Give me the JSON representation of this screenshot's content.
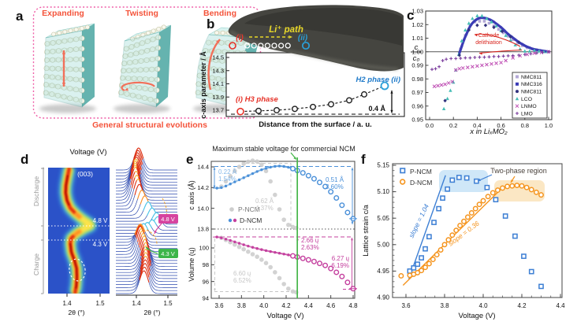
{
  "panel_a": {
    "label": "a",
    "titles": [
      "Expanding",
      "Twisting",
      "Bending"
    ],
    "caption": "General structural evolutions",
    "accent_color": "#f4533a",
    "border_color": "#ef5fa7"
  },
  "panel_b": {
    "label": "b",
    "tem": {
      "path_label": "Li⁺ path",
      "start_label": "(i)",
      "end_label": "(ii)",
      "start_color": "#e63329",
      "end_color": "#2a9fd8",
      "path_color": "#e8d829"
    },
    "plot": {
      "ylabel": "c-axis  parameter / Å",
      "xlabel": "Distance from the surface / a. u.",
      "yticks": [
        "14.5",
        "14.3",
        "14.1",
        "13.9",
        "13.7"
      ],
      "h2_label": "H2 phase (ii)",
      "h3_label": "(i) H3 phase",
      "delta_label": "0.4 Å",
      "values": [
        13.68,
        13.69,
        13.7,
        13.72,
        13.75,
        13.79,
        13.85,
        13.94,
        14.07
      ],
      "baseline": 13.64
    }
  },
  "panel_c": {
    "label": "c",
    "ylabel_num": "c",
    "ylabel_den": "c₀",
    "xlabel": "x in LiₓMO₂",
    "annotation1": "Cathode",
    "annotation2": "delithiation",
    "yticks": [
      "1.03",
      "1.02",
      "1.01",
      "1.00",
      "0.99",
      "0.98",
      "0.97",
      "0.96",
      "0.95"
    ],
    "xticks": [
      "0.0",
      "0.2",
      "0.4",
      "0.6",
      "0.8",
      "1.0"
    ],
    "legend": [
      {
        "label": "NMC811",
        "color": "#b3a8d6",
        "marker": "square"
      },
      {
        "label": "NMC316",
        "color": "#3b3bb5",
        "marker": "square"
      },
      {
        "label": "NMC811",
        "color": "#32327e",
        "marker": "circle"
      },
      {
        "label": "LCO",
        "color": "#45bdb5",
        "marker": "triangle"
      },
      {
        "label": "LNMO",
        "color": "#bf4fb4",
        "marker": "x"
      },
      {
        "label": "LMO",
        "color": "#7c3f9e",
        "marker": "plus"
      }
    ],
    "series": {
      "nmc316": {
        "x": [
          0.25,
          0.27,
          0.29,
          0.31,
          0.33,
          0.35,
          0.37,
          0.39,
          0.41,
          0.43,
          0.45,
          0.48,
          0.51,
          0.54,
          0.57,
          0.6,
          0.63,
          0.66,
          0.69,
          0.72,
          0.75,
          0.78,
          0.81,
          0.84,
          0.87,
          0.9,
          0.93,
          0.96,
          1.0
        ],
        "y": [
          0.999,
          1.004,
          1.009,
          1.013,
          1.017,
          1.02,
          1.022,
          1.0235,
          1.0245,
          1.025,
          1.025,
          1.0245,
          1.0235,
          1.022,
          1.02,
          1.018,
          1.0155,
          1.013,
          1.011,
          1.009,
          1.007,
          1.0055,
          1.004,
          1.003,
          1.002,
          1.0015,
          1.001,
          1.0005,
          1.0
        ]
      },
      "lco": {
        "x": [
          0.12,
          0.15,
          0.175,
          0.2,
          0.22,
          0.245,
          0.27,
          0.3,
          0.33,
          0.36,
          0.4,
          0.44,
          0.48,
          0.52,
          0.56,
          0.6,
          0.64,
          0.68,
          0.72,
          0.76,
          0.8,
          0.84,
          0.88,
          0.92,
          0.96,
          0.99
        ],
        "y": [
          0.958,
          0.9655,
          0.9715,
          0.9775,
          0.9865,
          0.998,
          1.008,
          1.016,
          1.021,
          1.0245,
          1.0265,
          1.0265,
          1.0245,
          1.022,
          1.019,
          1.0155,
          1.012,
          1.0085,
          1.005,
          1.002,
          1.0005,
          1.0005,
          1.001,
          1.0005,
          1.0,
          1.0
        ]
      },
      "nmc811_sq": {
        "x": [
          0.26,
          0.3,
          0.34,
          0.38,
          0.42,
          0.46,
          0.5,
          0.54,
          0.58,
          0.62,
          0.66,
          0.7,
          0.74,
          0.78,
          0.82,
          0.86,
          0.9,
          0.94,
          0.98
        ],
        "y": [
          1.002,
          1.012,
          1.019,
          1.022,
          1.0225,
          1.0225,
          1.021,
          1.019,
          1.0165,
          1.014,
          1.0115,
          1.009,
          1.0065,
          1.0045,
          1.003,
          1.002,
          1.001,
          1.0005,
          1.0
        ]
      },
      "nmc811_d": {
        "x": [
          0.13,
          0.25,
          0.33,
          0.4,
          0.47,
          0.54,
          0.61,
          0.68,
          0.75
        ],
        "y": [
          0.964,
          0.9975,
          1.016,
          1.0195,
          1.0195,
          1.018,
          1.015,
          1.011,
          1.007
        ]
      },
      "lnmo": {
        "x": [
          0.04,
          0.07,
          0.1,
          0.13,
          0.16,
          0.19,
          0.22,
          0.25,
          0.28,
          0.32,
          0.36,
          0.4,
          0.44,
          0.48,
          0.52,
          0.56,
          0.6,
          0.64,
          0.7,
          0.76,
          0.82,
          0.88,
          0.94,
          1.0
        ],
        "y": [
          0.9745,
          0.975,
          0.9755,
          0.976,
          0.977,
          0.978,
          0.9865,
          0.9875,
          0.988,
          0.9885,
          0.989,
          0.9895,
          0.99,
          0.9905,
          0.991,
          0.9915,
          0.992,
          0.9935,
          0.9955,
          0.997,
          0.998,
          0.999,
          0.9995,
          1.0
        ]
      },
      "lmo": {
        "x": [
          0.02,
          0.05,
          0.08,
          0.11,
          0.14,
          0.18,
          0.22,
          0.26,
          0.3,
          0.34,
          0.38,
          0.42,
          0.46,
          0.5,
          0.54,
          0.58,
          0.62,
          0.66,
          0.7,
          0.75,
          0.8,
          0.85,
          0.9,
          0.95,
          1.0
        ],
        "y": [
          0.987,
          0.9875,
          0.989,
          0.9935,
          0.9945,
          0.995,
          0.995,
          0.9952,
          0.9955,
          0.9955,
          0.9958,
          0.996,
          0.996,
          0.9962,
          0.9965,
          0.9965,
          0.9968,
          0.997,
          0.9972,
          0.9975,
          0.998,
          0.9985,
          0.999,
          0.9995,
          1.0
        ]
      }
    }
  },
  "panel_d": {
    "label": "d",
    "title": "Voltage (V)",
    "peak": "(003)",
    "v48": "4.8 V",
    "v43": "4.3 V",
    "discharge": "Discharge",
    "charge": "Charge",
    "xticks": [
      "1.4",
      "1.5"
    ],
    "xlabel": "2θ (°)",
    "band": [
      [
        0,
        1.424
      ],
      [
        0.06,
        1.428
      ],
      [
        0.13,
        1.43
      ],
      [
        0.2,
        1.429
      ],
      [
        0.26,
        1.423
      ],
      [
        0.33,
        1.413
      ],
      [
        0.4,
        1.41
      ],
      [
        0.44,
        1.413
      ],
      [
        0.48,
        1.43
      ],
      [
        0.515,
        1.452
      ],
      [
        0.545,
        1.474
      ],
      [
        0.57,
        1.458
      ],
      [
        0.6,
        1.442
      ],
      [
        0.64,
        1.424
      ],
      [
        0.68,
        1.41
      ],
      [
        0.74,
        1.4
      ],
      [
        0.8,
        1.396
      ],
      [
        0.86,
        1.397
      ],
      [
        0.92,
        1.401
      ],
      [
        1.0,
        1.407
      ]
    ],
    "heights": [
      [
        0,
        29
      ],
      [
        0.12,
        33
      ],
      [
        0.25,
        35
      ],
      [
        0.34,
        32
      ],
      [
        0.42,
        22
      ],
      [
        0.48,
        14
      ],
      [
        0.53,
        13
      ],
      [
        0.58,
        16
      ],
      [
        0.63,
        24
      ],
      [
        0.7,
        34
      ],
      [
        0.78,
        38
      ],
      [
        0.86,
        34
      ],
      [
        0.94,
        30
      ],
      [
        1,
        28
      ]
    ],
    "vline_48_f": 0.5375,
    "vline_43_f": 0.425
  },
  "panel_e": {
    "label": "e",
    "title": "Maximum stable voltage for commercial NCM",
    "ylabel_top": "c axis (Å)",
    "ylabel_bottom": "Volume (ų)",
    "xlabel": "Voltage (V)",
    "yticks_top": [
      "14.4",
      "14.2",
      "14.0",
      "13.8"
    ],
    "yticks_bottom": [
      "100",
      "98",
      "96",
      "94"
    ],
    "xticks": [
      "3.6",
      "3.8",
      "4.0",
      "4.2",
      "4.4",
      "4.6",
      "4.8"
    ],
    "legend": [
      "P-NCM",
      "D-NCM"
    ],
    "ann": {
      "a1": "0.22 Å",
      "a1b": "1.54%",
      "a2": "0.62 Å",
      "a2b": "4.37%",
      "a3": "0.51 Å",
      "a3b": "3.60%",
      "b1": "2.66 ų",
      "b1b": "2.63%",
      "b2": "6.27 ų",
      "b2b": "6.19%",
      "b3": "6.60 ų",
      "b3b": "6.52%"
    },
    "green_line_v": 4.3,
    "series": {
      "d_c": [
        [
          3.58,
          14.195
        ],
        [
          3.62,
          14.2
        ],
        [
          3.66,
          14.215
        ],
        [
          3.7,
          14.235
        ],
        [
          3.74,
          14.255
        ],
        [
          3.78,
          14.275
        ],
        [
          3.82,
          14.295
        ],
        [
          3.86,
          14.315
        ],
        [
          3.9,
          14.335
        ],
        [
          3.94,
          14.355
        ],
        [
          3.98,
          14.372
        ],
        [
          4.02,
          14.386
        ],
        [
          4.06,
          14.397
        ],
        [
          4.1,
          14.405
        ],
        [
          4.14,
          14.408
        ],
        [
          4.18,
          14.404
        ],
        [
          4.22,
          14.396
        ],
        [
          4.26,
          14.383
        ],
        [
          4.3,
          14.365
        ],
        [
          4.35,
          14.342
        ],
        [
          4.4,
          14.315
        ],
        [
          4.45,
          14.285
        ],
        [
          4.5,
          14.25
        ],
        [
          4.55,
          14.21
        ],
        [
          4.6,
          14.16
        ],
        [
          4.65,
          14.1
        ],
        [
          4.7,
          14.03
        ],
        [
          4.75,
          13.96
        ],
        [
          4.8,
          13.9
        ]
      ],
      "p_c": [
        [
          3.62,
          14.21
        ],
        [
          3.66,
          14.26
        ],
        [
          3.7,
          14.31
        ],
        [
          3.74,
          14.36
        ],
        [
          3.78,
          14.4
        ],
        [
          3.82,
          14.43
        ],
        [
          3.86,
          14.45
        ],
        [
          3.9,
          14.46
        ],
        [
          3.94,
          14.452
        ],
        [
          3.98,
          14.42
        ],
        [
          4.02,
          14.36
        ],
        [
          4.06,
          14.26
        ],
        [
          4.1,
          14.13
        ],
        [
          4.14,
          13.99
        ],
        [
          4.18,
          13.89
        ],
        [
          4.22,
          13.84
        ],
        [
          4.26,
          13.82
        ],
        [
          4.29,
          13.81
        ]
      ],
      "d_v": [
        [
          3.58,
          101.3
        ],
        [
          3.62,
          101.2
        ],
        [
          3.66,
          101.05
        ],
        [
          3.7,
          100.9
        ],
        [
          3.74,
          100.72
        ],
        [
          3.78,
          100.55
        ],
        [
          3.82,
          100.38
        ],
        [
          3.86,
          100.22
        ],
        [
          3.9,
          100.07
        ],
        [
          3.94,
          99.93
        ],
        [
          3.98,
          99.8
        ],
        [
          4.02,
          99.68
        ],
        [
          4.06,
          99.57
        ],
        [
          4.1,
          99.47
        ],
        [
          4.14,
          99.37
        ],
        [
          4.18,
          99.27
        ],
        [
          4.22,
          99.17
        ],
        [
          4.26,
          99.05
        ],
        [
          4.3,
          98.92
        ],
        [
          4.35,
          98.76
        ],
        [
          4.4,
          98.58
        ],
        [
          4.45,
          98.38
        ],
        [
          4.5,
          98.16
        ],
        [
          4.55,
          97.92
        ],
        [
          4.6,
          97.55
        ],
        [
          4.65,
          97.1
        ],
        [
          4.7,
          96.6
        ],
        [
          4.75,
          95.9
        ],
        [
          4.8,
          95.15
        ]
      ],
      "p_v": [
        [
          3.62,
          101.2
        ],
        [
          3.66,
          100.95
        ],
        [
          3.7,
          100.68
        ],
        [
          3.74,
          100.4
        ],
        [
          3.78,
          100.12
        ],
        [
          3.82,
          99.84
        ],
        [
          3.86,
          99.55
        ],
        [
          3.9,
          99.25
        ],
        [
          3.94,
          98.95
        ],
        [
          3.98,
          98.6
        ],
        [
          4.02,
          98.2
        ],
        [
          4.06,
          97.7
        ],
        [
          4.1,
          97.1
        ],
        [
          4.14,
          96.4
        ],
        [
          4.18,
          95.7
        ],
        [
          4.22,
          95.15
        ],
        [
          4.26,
          94.82
        ],
        [
          4.29,
          94.72
        ]
      ]
    }
  },
  "panel_f": {
    "label": "f",
    "ylabel": "Lattice strain c/a",
    "xlabel": "Voltage (V)",
    "yticks": [
      "5.15",
      "5.10",
      "5.05",
      "5.00",
      "4.95",
      "4.90"
    ],
    "xticks": [
      "3.6",
      "3.8",
      "4.0",
      "4.2",
      "4.4"
    ],
    "legend": [
      "P-NCM",
      "D-NCM"
    ],
    "region_label": "Two-phase region",
    "slope1": "slope = 1.04",
    "slope2": "slope = 0.36",
    "series": {
      "p": [
        [
          3.62,
          4.95
        ],
        [
          3.64,
          4.956
        ],
        [
          3.66,
          4.963
        ],
        [
          3.68,
          4.975
        ],
        [
          3.7,
          4.992
        ],
        [
          3.72,
          5.015
        ],
        [
          3.745,
          5.042
        ],
        [
          3.77,
          5.068
        ],
        [
          3.79,
          5.088
        ],
        [
          3.815,
          5.105
        ],
        [
          3.84,
          5.122
        ],
        [
          3.875,
          5.127
        ],
        [
          3.915,
          5.126
        ],
        [
          3.965,
          5.12
        ],
        [
          4.02,
          5.108
        ],
        [
          4.065,
          5.085
        ],
        [
          4.115,
          5.054
        ],
        [
          4.165,
          5.016
        ],
        [
          4.21,
          4.978
        ],
        [
          4.25,
          4.949
        ],
        [
          4.3,
          4.921
        ]
      ],
      "d": [
        [
          3.575,
          4.941
        ],
        [
          3.62,
          4.942
        ],
        [
          3.64,
          4.944
        ],
        [
          3.66,
          4.947
        ],
        [
          3.68,
          4.951
        ],
        [
          3.7,
          4.957
        ],
        [
          3.72,
          4.964
        ],
        [
          3.74,
          4.972
        ],
        [
          3.76,
          4.981
        ],
        [
          3.78,
          4.99
        ],
        [
          3.8,
          5.0
        ],
        [
          3.82,
          5.009
        ],
        [
          3.84,
          5.018
        ],
        [
          3.86,
          5.027
        ],
        [
          3.88,
          5.036
        ],
        [
          3.9,
          5.044
        ],
        [
          3.92,
          5.052
        ],
        [
          3.94,
          5.06
        ],
        [
          3.96,
          5.068
        ],
        [
          3.98,
          5.076
        ],
        [
          4.0,
          5.083
        ],
        [
          4.025,
          5.091
        ],
        [
          4.05,
          5.098
        ],
        [
          4.075,
          5.103
        ],
        [
          4.1,
          5.107
        ],
        [
          4.125,
          5.11
        ],
        [
          4.15,
          5.111
        ],
        [
          4.175,
          5.112
        ],
        [
          4.2,
          5.111
        ],
        [
          4.225,
          5.108
        ],
        [
          4.25,
          5.104
        ],
        [
          4.275,
          5.099
        ],
        [
          4.3,
          5.094
        ]
      ],
      "fit_p": [
        [
          3.615,
          4.935
        ],
        [
          3.805,
          5.131
        ]
      ],
      "fit_d": [
        [
          3.585,
          4.923
        ],
        [
          4.095,
          5.106
        ]
      ]
    },
    "colors": {
      "p": "#3d7fd4",
      "d": "#f5941d",
      "p_box": "#cfe7f8",
      "d_box": "#fbe7c4"
    }
  }
}
